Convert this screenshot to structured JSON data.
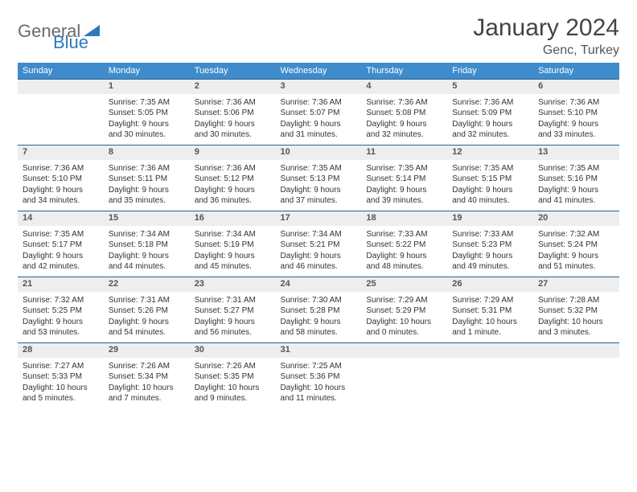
{
  "logo": {
    "text1": "General",
    "text2": "Blue"
  },
  "title": "January 2024",
  "location": "Genc, Turkey",
  "colors": {
    "header_bg": "#3e8ccc",
    "header_text": "#ffffff",
    "border": "#2d5f8e",
    "daynum_bg": "#eeeeee",
    "logo_gray": "#6b6b6b",
    "logo_blue": "#2f78bf"
  },
  "weekdays": [
    "Sunday",
    "Monday",
    "Tuesday",
    "Wednesday",
    "Thursday",
    "Friday",
    "Saturday"
  ],
  "weeks": [
    [
      null,
      {
        "n": "1",
        "sr": "Sunrise: 7:35 AM",
        "ss": "Sunset: 5:05 PM",
        "d1": "Daylight: 9 hours",
        "d2": "and 30 minutes."
      },
      {
        "n": "2",
        "sr": "Sunrise: 7:36 AM",
        "ss": "Sunset: 5:06 PM",
        "d1": "Daylight: 9 hours",
        "d2": "and 30 minutes."
      },
      {
        "n": "3",
        "sr": "Sunrise: 7:36 AM",
        "ss": "Sunset: 5:07 PM",
        "d1": "Daylight: 9 hours",
        "d2": "and 31 minutes."
      },
      {
        "n": "4",
        "sr": "Sunrise: 7:36 AM",
        "ss": "Sunset: 5:08 PM",
        "d1": "Daylight: 9 hours",
        "d2": "and 32 minutes."
      },
      {
        "n": "5",
        "sr": "Sunrise: 7:36 AM",
        "ss": "Sunset: 5:09 PM",
        "d1": "Daylight: 9 hours",
        "d2": "and 32 minutes."
      },
      {
        "n": "6",
        "sr": "Sunrise: 7:36 AM",
        "ss": "Sunset: 5:10 PM",
        "d1": "Daylight: 9 hours",
        "d2": "and 33 minutes."
      }
    ],
    [
      {
        "n": "7",
        "sr": "Sunrise: 7:36 AM",
        "ss": "Sunset: 5:10 PM",
        "d1": "Daylight: 9 hours",
        "d2": "and 34 minutes."
      },
      {
        "n": "8",
        "sr": "Sunrise: 7:36 AM",
        "ss": "Sunset: 5:11 PM",
        "d1": "Daylight: 9 hours",
        "d2": "and 35 minutes."
      },
      {
        "n": "9",
        "sr": "Sunrise: 7:36 AM",
        "ss": "Sunset: 5:12 PM",
        "d1": "Daylight: 9 hours",
        "d2": "and 36 minutes."
      },
      {
        "n": "10",
        "sr": "Sunrise: 7:35 AM",
        "ss": "Sunset: 5:13 PM",
        "d1": "Daylight: 9 hours",
        "d2": "and 37 minutes."
      },
      {
        "n": "11",
        "sr": "Sunrise: 7:35 AM",
        "ss": "Sunset: 5:14 PM",
        "d1": "Daylight: 9 hours",
        "d2": "and 39 minutes."
      },
      {
        "n": "12",
        "sr": "Sunrise: 7:35 AM",
        "ss": "Sunset: 5:15 PM",
        "d1": "Daylight: 9 hours",
        "d2": "and 40 minutes."
      },
      {
        "n": "13",
        "sr": "Sunrise: 7:35 AM",
        "ss": "Sunset: 5:16 PM",
        "d1": "Daylight: 9 hours",
        "d2": "and 41 minutes."
      }
    ],
    [
      {
        "n": "14",
        "sr": "Sunrise: 7:35 AM",
        "ss": "Sunset: 5:17 PM",
        "d1": "Daylight: 9 hours",
        "d2": "and 42 minutes."
      },
      {
        "n": "15",
        "sr": "Sunrise: 7:34 AM",
        "ss": "Sunset: 5:18 PM",
        "d1": "Daylight: 9 hours",
        "d2": "and 44 minutes."
      },
      {
        "n": "16",
        "sr": "Sunrise: 7:34 AM",
        "ss": "Sunset: 5:19 PM",
        "d1": "Daylight: 9 hours",
        "d2": "and 45 minutes."
      },
      {
        "n": "17",
        "sr": "Sunrise: 7:34 AM",
        "ss": "Sunset: 5:21 PM",
        "d1": "Daylight: 9 hours",
        "d2": "and 46 minutes."
      },
      {
        "n": "18",
        "sr": "Sunrise: 7:33 AM",
        "ss": "Sunset: 5:22 PM",
        "d1": "Daylight: 9 hours",
        "d2": "and 48 minutes."
      },
      {
        "n": "19",
        "sr": "Sunrise: 7:33 AM",
        "ss": "Sunset: 5:23 PM",
        "d1": "Daylight: 9 hours",
        "d2": "and 49 minutes."
      },
      {
        "n": "20",
        "sr": "Sunrise: 7:32 AM",
        "ss": "Sunset: 5:24 PM",
        "d1": "Daylight: 9 hours",
        "d2": "and 51 minutes."
      }
    ],
    [
      {
        "n": "21",
        "sr": "Sunrise: 7:32 AM",
        "ss": "Sunset: 5:25 PM",
        "d1": "Daylight: 9 hours",
        "d2": "and 53 minutes."
      },
      {
        "n": "22",
        "sr": "Sunrise: 7:31 AM",
        "ss": "Sunset: 5:26 PM",
        "d1": "Daylight: 9 hours",
        "d2": "and 54 minutes."
      },
      {
        "n": "23",
        "sr": "Sunrise: 7:31 AM",
        "ss": "Sunset: 5:27 PM",
        "d1": "Daylight: 9 hours",
        "d2": "and 56 minutes."
      },
      {
        "n": "24",
        "sr": "Sunrise: 7:30 AM",
        "ss": "Sunset: 5:28 PM",
        "d1": "Daylight: 9 hours",
        "d2": "and 58 minutes."
      },
      {
        "n": "25",
        "sr": "Sunrise: 7:29 AM",
        "ss": "Sunset: 5:29 PM",
        "d1": "Daylight: 10 hours",
        "d2": "and 0 minutes."
      },
      {
        "n": "26",
        "sr": "Sunrise: 7:29 AM",
        "ss": "Sunset: 5:31 PM",
        "d1": "Daylight: 10 hours",
        "d2": "and 1 minute."
      },
      {
        "n": "27",
        "sr": "Sunrise: 7:28 AM",
        "ss": "Sunset: 5:32 PM",
        "d1": "Daylight: 10 hours",
        "d2": "and 3 minutes."
      }
    ],
    [
      {
        "n": "28",
        "sr": "Sunrise: 7:27 AM",
        "ss": "Sunset: 5:33 PM",
        "d1": "Daylight: 10 hours",
        "d2": "and 5 minutes."
      },
      {
        "n": "29",
        "sr": "Sunrise: 7:26 AM",
        "ss": "Sunset: 5:34 PM",
        "d1": "Daylight: 10 hours",
        "d2": "and 7 minutes."
      },
      {
        "n": "30",
        "sr": "Sunrise: 7:26 AM",
        "ss": "Sunset: 5:35 PM",
        "d1": "Daylight: 10 hours",
        "d2": "and 9 minutes."
      },
      {
        "n": "31",
        "sr": "Sunrise: 7:25 AM",
        "ss": "Sunset: 5:36 PM",
        "d1": "Daylight: 10 hours",
        "d2": "and 11 minutes."
      },
      null,
      null,
      null
    ]
  ]
}
